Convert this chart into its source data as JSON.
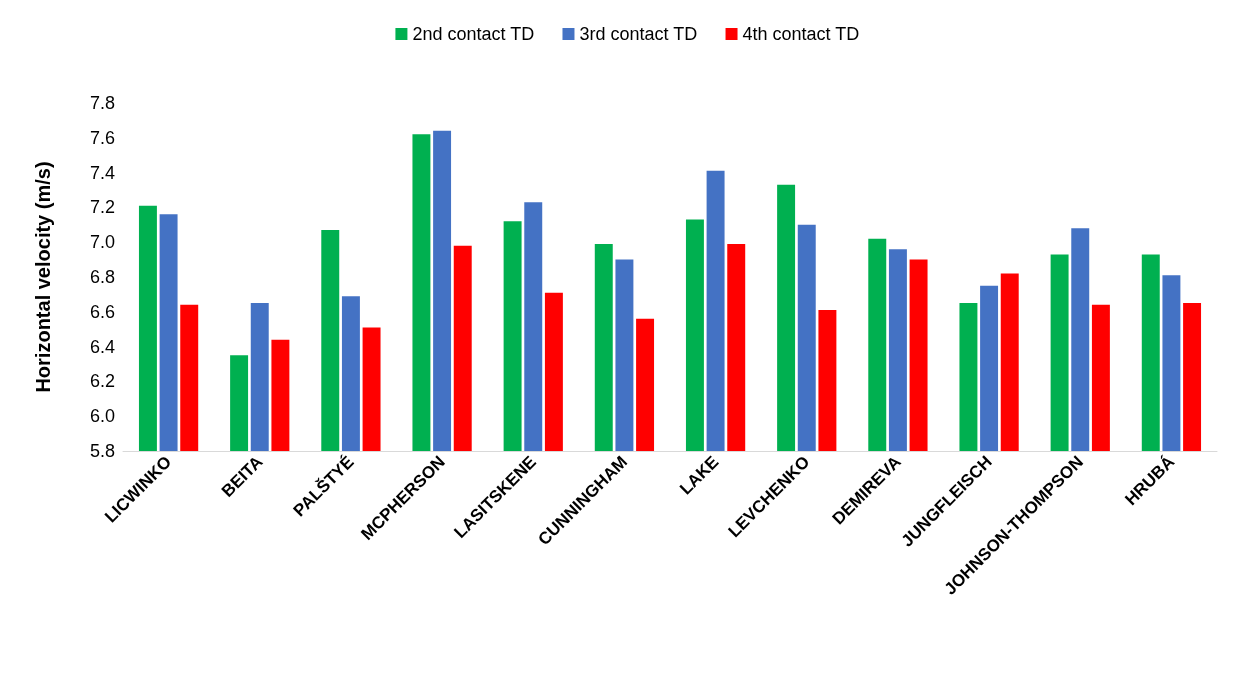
{
  "chart_data": {
    "type": "bar",
    "ylabel": "Horizontal velocity (m/s)",
    "categories": [
      "LICWINKO",
      "BEITA",
      "PALŠTYÉ",
      "MCPHERSON",
      "LASITSKENE",
      "CUNNINGHAM",
      "LAKE",
      "LEVCHENKO",
      "DEMIREVA",
      "JUNGFLEISCH",
      "JOHNSON-THOMPSON",
      "HRUBÁ"
    ],
    "series": [
      {
        "name": "2nd contact TD",
        "color": "#00b050",
        "values": [
          7.21,
          6.35,
          7.07,
          7.62,
          7.12,
          6.99,
          7.13,
          7.33,
          7.02,
          6.65,
          6.93,
          6.93
        ]
      },
      {
        "name": "3rd contact TD",
        "color": "#4472c4",
        "values": [
          7.16,
          6.65,
          6.69,
          7.64,
          7.23,
          6.9,
          7.41,
          7.1,
          6.96,
          6.75,
          7.08,
          6.81
        ]
      },
      {
        "name": "4th contact TD",
        "color": "#ff0000",
        "values": [
          6.64,
          6.44,
          6.51,
          6.98,
          6.71,
          6.56,
          6.99,
          6.61,
          6.9,
          6.82,
          6.64,
          6.65
        ]
      }
    ],
    "ylim": [
      5.8,
      7.8
    ],
    "yticks": [
      5.8,
      {
        "value": 6,
        "label": "6.0"
      },
      6.2,
      6.4,
      6.6,
      6.8,
      {
        "value": 7,
        "label": "7.0"
      },
      7.2,
      7.4,
      7.6,
      7.8
    ],
    "grid": false,
    "legend": "top"
  }
}
